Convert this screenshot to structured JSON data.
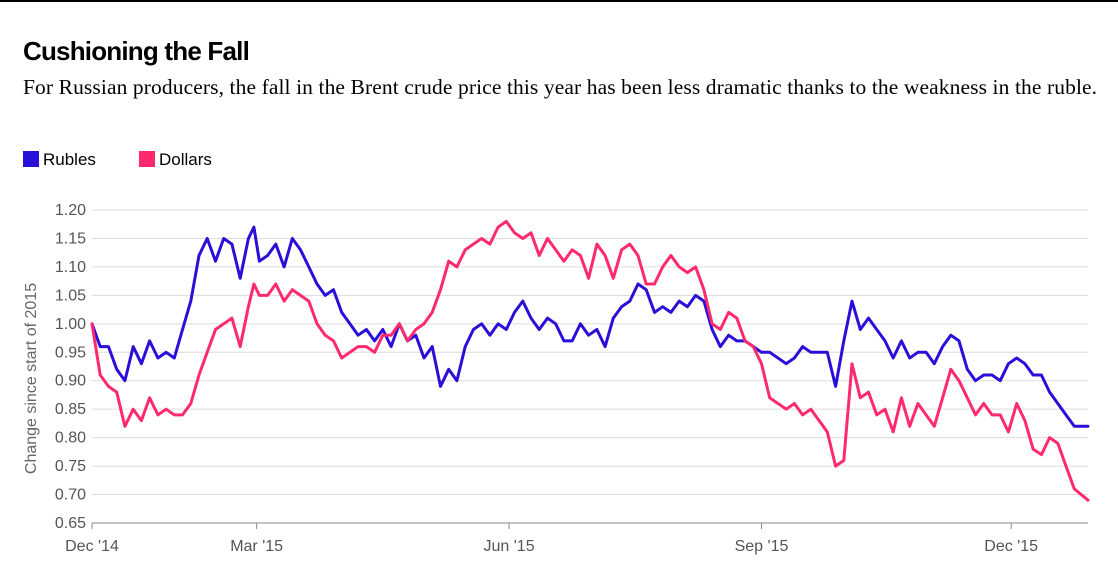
{
  "title": "Cushioning the Fall",
  "subtitle": "For Russian producers, the fall in the Brent crude price this year has been less dramatic thanks to the weakness in the ruble.",
  "legend": [
    {
      "label": "Rubles",
      "color": "#2a0fd9"
    },
    {
      "label": "Dollars",
      "color": "#ff2a6d"
    }
  ],
  "chart_data": {
    "type": "line",
    "title": "Cushioning the Fall",
    "ylabel": "Change since start of 2015",
    "xlabel": "",
    "ylim": [
      0.65,
      1.2
    ],
    "yticks": [
      0.65,
      0.7,
      0.75,
      0.8,
      0.85,
      0.9,
      0.95,
      1.0,
      1.05,
      1.1,
      1.15,
      1.2
    ],
    "ytick_labels": [
      "0.65",
      "0.70",
      "0.75",
      "0.80",
      "0.85",
      "0.90",
      "0.95",
      "1.00",
      "1.05",
      "1.10",
      "1.15",
      "1.20"
    ],
    "xlim": [
      "2014-12-31",
      "2015-12-29"
    ],
    "xticks": [
      {
        "date": "2014-12-31",
        "label": "Dec '14"
      },
      {
        "date": "2015-03-01",
        "label": "Mar '15"
      },
      {
        "date": "2015-06-01",
        "label": "Jun '15"
      },
      {
        "date": "2015-09-01",
        "label": "Sep '15"
      },
      {
        "date": "2015-12-01",
        "label": "Dec '15"
      }
    ],
    "grid": true,
    "legend_position": "top-left",
    "series": [
      {
        "name": "Rubles",
        "color": "#2a0fd9",
        "points": [
          [
            "2014-12-31",
            1.0
          ],
          [
            "2015-01-03",
            0.96
          ],
          [
            "2015-01-06",
            0.96
          ],
          [
            "2015-01-09",
            0.92
          ],
          [
            "2015-01-12",
            0.9
          ],
          [
            "2015-01-15",
            0.96
          ],
          [
            "2015-01-18",
            0.93
          ],
          [
            "2015-01-21",
            0.97
          ],
          [
            "2015-01-24",
            0.94
          ],
          [
            "2015-01-27",
            0.95
          ],
          [
            "2015-01-30",
            0.94
          ],
          [
            "2015-02-02",
            0.99
          ],
          [
            "2015-02-05",
            1.04
          ],
          [
            "2015-02-08",
            1.12
          ],
          [
            "2015-02-11",
            1.15
          ],
          [
            "2015-02-14",
            1.11
          ],
          [
            "2015-02-17",
            1.15
          ],
          [
            "2015-02-20",
            1.14
          ],
          [
            "2015-02-23",
            1.08
          ],
          [
            "2015-02-26",
            1.15
          ],
          [
            "2015-02-28",
            1.17
          ],
          [
            "2015-03-02",
            1.11
          ],
          [
            "2015-03-05",
            1.12
          ],
          [
            "2015-03-08",
            1.14
          ],
          [
            "2015-03-11",
            1.1
          ],
          [
            "2015-03-14",
            1.15
          ],
          [
            "2015-03-17",
            1.13
          ],
          [
            "2015-03-20",
            1.1
          ],
          [
            "2015-03-23",
            1.07
          ],
          [
            "2015-03-26",
            1.05
          ],
          [
            "2015-03-29",
            1.06
          ],
          [
            "2015-04-01",
            1.02
          ],
          [
            "2015-04-04",
            1.0
          ],
          [
            "2015-04-07",
            0.98
          ],
          [
            "2015-04-10",
            0.99
          ],
          [
            "2015-04-13",
            0.97
          ],
          [
            "2015-04-16",
            0.99
          ],
          [
            "2015-04-19",
            0.96
          ],
          [
            "2015-04-22",
            1.0
          ],
          [
            "2015-04-25",
            0.97
          ],
          [
            "2015-04-28",
            0.98
          ],
          [
            "2015-05-01",
            0.94
          ],
          [
            "2015-05-04",
            0.96
          ],
          [
            "2015-05-07",
            0.89
          ],
          [
            "2015-05-10",
            0.92
          ],
          [
            "2015-05-13",
            0.9
          ],
          [
            "2015-05-16",
            0.96
          ],
          [
            "2015-05-19",
            0.99
          ],
          [
            "2015-05-22",
            1.0
          ],
          [
            "2015-05-25",
            0.98
          ],
          [
            "2015-05-28",
            1.0
          ],
          [
            "2015-05-31",
            0.99
          ],
          [
            "2015-06-03",
            1.02
          ],
          [
            "2015-06-06",
            1.04
          ],
          [
            "2015-06-09",
            1.01
          ],
          [
            "2015-06-12",
            0.99
          ],
          [
            "2015-06-15",
            1.01
          ],
          [
            "2015-06-18",
            1.0
          ],
          [
            "2015-06-21",
            0.97
          ],
          [
            "2015-06-24",
            0.97
          ],
          [
            "2015-06-27",
            1.0
          ],
          [
            "2015-06-30",
            0.98
          ],
          [
            "2015-07-03",
            0.99
          ],
          [
            "2015-07-06",
            0.96
          ],
          [
            "2015-07-09",
            1.01
          ],
          [
            "2015-07-12",
            1.03
          ],
          [
            "2015-07-15",
            1.04
          ],
          [
            "2015-07-18",
            1.07
          ],
          [
            "2015-07-21",
            1.06
          ],
          [
            "2015-07-24",
            1.02
          ],
          [
            "2015-07-27",
            1.03
          ],
          [
            "2015-07-30",
            1.02
          ],
          [
            "2015-08-02",
            1.04
          ],
          [
            "2015-08-05",
            1.03
          ],
          [
            "2015-08-08",
            1.05
          ],
          [
            "2015-08-11",
            1.04
          ],
          [
            "2015-08-14",
            0.99
          ],
          [
            "2015-08-17",
            0.96
          ],
          [
            "2015-08-20",
            0.98
          ],
          [
            "2015-08-23",
            0.97
          ],
          [
            "2015-08-26",
            0.97
          ],
          [
            "2015-08-29",
            0.96
          ],
          [
            "2015-09-01",
            0.95
          ],
          [
            "2015-09-04",
            0.95
          ],
          [
            "2015-09-07",
            0.94
          ],
          [
            "2015-09-10",
            0.93
          ],
          [
            "2015-09-13",
            0.94
          ],
          [
            "2015-09-16",
            0.96
          ],
          [
            "2015-09-19",
            0.95
          ],
          [
            "2015-09-22",
            0.95
          ],
          [
            "2015-09-25",
            0.95
          ],
          [
            "2015-09-28",
            0.89
          ],
          [
            "2015-10-01",
            0.97
          ],
          [
            "2015-10-04",
            1.04
          ],
          [
            "2015-10-07",
            0.99
          ],
          [
            "2015-10-10",
            1.01
          ],
          [
            "2015-10-13",
            0.99
          ],
          [
            "2015-10-16",
            0.97
          ],
          [
            "2015-10-19",
            0.94
          ],
          [
            "2015-10-22",
            0.97
          ],
          [
            "2015-10-25",
            0.94
          ],
          [
            "2015-10-28",
            0.95
          ],
          [
            "2015-10-31",
            0.95
          ],
          [
            "2015-11-03",
            0.93
          ],
          [
            "2015-11-06",
            0.96
          ],
          [
            "2015-11-09",
            0.98
          ],
          [
            "2015-11-12",
            0.97
          ],
          [
            "2015-11-15",
            0.92
          ],
          [
            "2015-11-18",
            0.9
          ],
          [
            "2015-11-21",
            0.91
          ],
          [
            "2015-11-24",
            0.91
          ],
          [
            "2015-11-27",
            0.9
          ],
          [
            "2015-11-30",
            0.93
          ],
          [
            "2015-12-03",
            0.94
          ],
          [
            "2015-12-06",
            0.93
          ],
          [
            "2015-12-09",
            0.91
          ],
          [
            "2015-12-12",
            0.91
          ],
          [
            "2015-12-15",
            0.88
          ],
          [
            "2015-12-18",
            0.86
          ],
          [
            "2015-12-21",
            0.84
          ],
          [
            "2015-12-24",
            0.82
          ],
          [
            "2015-12-29",
            0.82
          ]
        ]
      },
      {
        "name": "Dollars",
        "color": "#ff2a6d",
        "points": [
          [
            "2014-12-31",
            1.0
          ],
          [
            "2015-01-03",
            0.91
          ],
          [
            "2015-01-06",
            0.89
          ],
          [
            "2015-01-09",
            0.88
          ],
          [
            "2015-01-12",
            0.82
          ],
          [
            "2015-01-15",
            0.85
          ],
          [
            "2015-01-18",
            0.83
          ],
          [
            "2015-01-21",
            0.87
          ],
          [
            "2015-01-24",
            0.84
          ],
          [
            "2015-01-27",
            0.85
          ],
          [
            "2015-01-30",
            0.84
          ],
          [
            "2015-02-02",
            0.84
          ],
          [
            "2015-02-05",
            0.86
          ],
          [
            "2015-02-08",
            0.91
          ],
          [
            "2015-02-11",
            0.95
          ],
          [
            "2015-02-14",
            0.99
          ],
          [
            "2015-02-17",
            1.0
          ],
          [
            "2015-02-20",
            1.01
          ],
          [
            "2015-02-23",
            0.96
          ],
          [
            "2015-02-26",
            1.03
          ],
          [
            "2015-02-28",
            1.07
          ],
          [
            "2015-03-02",
            1.05
          ],
          [
            "2015-03-05",
            1.05
          ],
          [
            "2015-03-08",
            1.07
          ],
          [
            "2015-03-11",
            1.04
          ],
          [
            "2015-03-14",
            1.06
          ],
          [
            "2015-03-17",
            1.05
          ],
          [
            "2015-03-20",
            1.04
          ],
          [
            "2015-03-23",
            1.0
          ],
          [
            "2015-03-26",
            0.98
          ],
          [
            "2015-03-29",
            0.97
          ],
          [
            "2015-04-01",
            0.94
          ],
          [
            "2015-04-04",
            0.95
          ],
          [
            "2015-04-07",
            0.96
          ],
          [
            "2015-04-10",
            0.96
          ],
          [
            "2015-04-13",
            0.95
          ],
          [
            "2015-04-16",
            0.98
          ],
          [
            "2015-04-19",
            0.98
          ],
          [
            "2015-04-22",
            1.0
          ],
          [
            "2015-04-25",
            0.97
          ],
          [
            "2015-04-28",
            0.99
          ],
          [
            "2015-05-01",
            1.0
          ],
          [
            "2015-05-04",
            1.02
          ],
          [
            "2015-05-07",
            1.06
          ],
          [
            "2015-05-10",
            1.11
          ],
          [
            "2015-05-13",
            1.1
          ],
          [
            "2015-05-16",
            1.13
          ],
          [
            "2015-05-19",
            1.14
          ],
          [
            "2015-05-22",
            1.15
          ],
          [
            "2015-05-25",
            1.14
          ],
          [
            "2015-05-28",
            1.17
          ],
          [
            "2015-05-31",
            1.18
          ],
          [
            "2015-06-03",
            1.16
          ],
          [
            "2015-06-06",
            1.15
          ],
          [
            "2015-06-09",
            1.16
          ],
          [
            "2015-06-12",
            1.12
          ],
          [
            "2015-06-15",
            1.15
          ],
          [
            "2015-06-18",
            1.13
          ],
          [
            "2015-06-21",
            1.11
          ],
          [
            "2015-06-24",
            1.13
          ],
          [
            "2015-06-27",
            1.12
          ],
          [
            "2015-06-30",
            1.08
          ],
          [
            "2015-07-03",
            1.14
          ],
          [
            "2015-07-06",
            1.12
          ],
          [
            "2015-07-09",
            1.08
          ],
          [
            "2015-07-12",
            1.13
          ],
          [
            "2015-07-15",
            1.14
          ],
          [
            "2015-07-18",
            1.12
          ],
          [
            "2015-07-21",
            1.07
          ],
          [
            "2015-07-24",
            1.07
          ],
          [
            "2015-07-27",
            1.1
          ],
          [
            "2015-07-30",
            1.12
          ],
          [
            "2015-08-02",
            1.1
          ],
          [
            "2015-08-05",
            1.09
          ],
          [
            "2015-08-08",
            1.1
          ],
          [
            "2015-08-11",
            1.06
          ],
          [
            "2015-08-14",
            1.0
          ],
          [
            "2015-08-17",
            0.99
          ],
          [
            "2015-08-20",
            1.02
          ],
          [
            "2015-08-23",
            1.01
          ],
          [
            "2015-08-26",
            0.97
          ],
          [
            "2015-08-29",
            0.96
          ],
          [
            "2015-09-01",
            0.93
          ],
          [
            "2015-09-04",
            0.87
          ],
          [
            "2015-09-07",
            0.86
          ],
          [
            "2015-09-10",
            0.85
          ],
          [
            "2015-09-13",
            0.86
          ],
          [
            "2015-09-16",
            0.84
          ],
          [
            "2015-09-19",
            0.85
          ],
          [
            "2015-09-22",
            0.83
          ],
          [
            "2015-09-25",
            0.81
          ],
          [
            "2015-09-28",
            0.75
          ],
          [
            "2015-10-01",
            0.76
          ],
          [
            "2015-10-04",
            0.93
          ],
          [
            "2015-10-07",
            0.87
          ],
          [
            "2015-10-10",
            0.88
          ],
          [
            "2015-10-13",
            0.84
          ],
          [
            "2015-10-16",
            0.85
          ],
          [
            "2015-10-19",
            0.81
          ],
          [
            "2015-10-22",
            0.87
          ],
          [
            "2015-10-25",
            0.82
          ],
          [
            "2015-10-28",
            0.86
          ],
          [
            "2015-10-31",
            0.84
          ],
          [
            "2015-11-03",
            0.82
          ],
          [
            "2015-11-06",
            0.87
          ],
          [
            "2015-11-09",
            0.92
          ],
          [
            "2015-11-12",
            0.9
          ],
          [
            "2015-11-15",
            0.87
          ],
          [
            "2015-11-18",
            0.84
          ],
          [
            "2015-11-21",
            0.86
          ],
          [
            "2015-11-24",
            0.84
          ],
          [
            "2015-11-27",
            0.84
          ],
          [
            "2015-11-30",
            0.81
          ],
          [
            "2015-12-03",
            0.86
          ],
          [
            "2015-12-06",
            0.83
          ],
          [
            "2015-12-09",
            0.78
          ],
          [
            "2015-12-12",
            0.77
          ],
          [
            "2015-12-15",
            0.8
          ],
          [
            "2015-12-18",
            0.79
          ],
          [
            "2015-12-21",
            0.75
          ],
          [
            "2015-12-24",
            0.71
          ],
          [
            "2015-12-29",
            0.69
          ]
        ]
      }
    ]
  }
}
